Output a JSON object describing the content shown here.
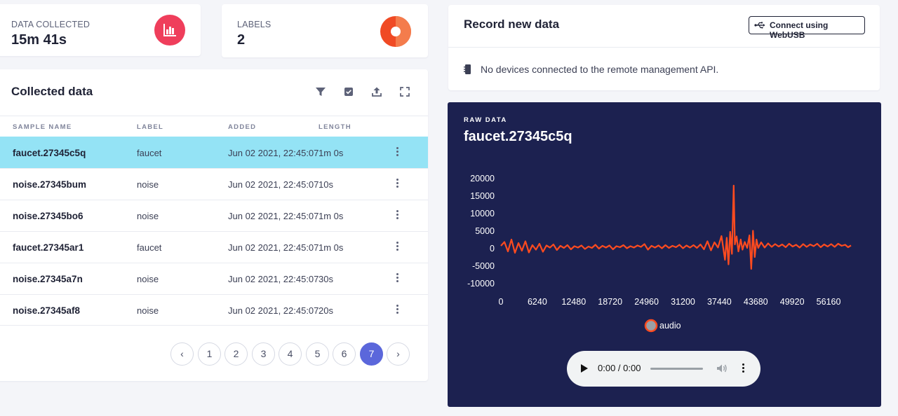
{
  "stats": {
    "data_collected": {
      "label": "DATA COLLECTED",
      "value": "15m 41s",
      "icon": "bar-chart-icon",
      "color": "#ef3e5b"
    },
    "labels": {
      "label": "LABELS",
      "value": "2",
      "icon": "pie-chart-icon",
      "colors": [
        "#f04a24",
        "#f7a06b"
      ]
    }
  },
  "collected": {
    "title": "Collected data",
    "tools": [
      "filter-icon",
      "select-icon",
      "upload-icon",
      "expand-icon"
    ],
    "columns": [
      "SAMPLE NAME",
      "LABEL",
      "ADDED",
      "LENGTH"
    ],
    "rows": [
      {
        "name": "faucet.27345c5q",
        "label": "faucet",
        "added": "Jun 02 2021, 22:45:07",
        "length": "1m 0s"
      },
      {
        "name": "noise.27345bum",
        "label": "noise",
        "added": "Jun 02 2021, 22:45:07",
        "length": "10s"
      },
      {
        "name": "noise.27345bo6",
        "label": "noise",
        "added": "Jun 02 2021, 22:45:07",
        "length": "1m 0s"
      },
      {
        "name": "faucet.27345ar1",
        "label": "faucet",
        "added": "Jun 02 2021, 22:45:07",
        "length": "1m 0s"
      },
      {
        "name": "noise.27345a7n",
        "label": "noise",
        "added": "Jun 02 2021, 22:45:07",
        "length": "30s"
      },
      {
        "name": "noise.27345af8",
        "label": "noise",
        "added": "Jun 02 2021, 22:45:07",
        "length": "20s"
      }
    ],
    "selected_row": 0,
    "pagination": {
      "prev": "‹",
      "next": "›",
      "pages": [
        "1",
        "2",
        "3",
        "4",
        "5",
        "6",
        "7"
      ],
      "current": "7"
    }
  },
  "record": {
    "title": "Record new data",
    "webusb_button": "Connect using WebUSB",
    "message": "No devices connected to the remote management API."
  },
  "raw": {
    "section_label": "RAW DATA",
    "sample_name": "faucet.27345c5q",
    "audio_player": {
      "time": "0:00 / 0:00"
    }
  },
  "chart_data": {
    "type": "line",
    "title": "",
    "xlabel": "",
    "ylabel": "",
    "x_ticks": [
      0,
      6240,
      12480,
      18720,
      24960,
      31200,
      37440,
      43680,
      49920,
      56160
    ],
    "y_ticks": [
      20000,
      15000,
      10000,
      5000,
      0,
      -5000,
      -10000
    ],
    "xlim": [
      0,
      60000
    ],
    "ylim": [
      -10000,
      20000
    ],
    "grid": false,
    "legend": "bottom",
    "series": [
      {
        "name": "audio",
        "color": "#ff4b1f",
        "points": [
          [
            0,
            800
          ],
          [
            600,
            1900
          ],
          [
            1200,
            -800
          ],
          [
            1800,
            2600
          ],
          [
            2400,
            -1200
          ],
          [
            3000,
            1600
          ],
          [
            3600,
            -600
          ],
          [
            4200,
            2100
          ],
          [
            4800,
            -1100
          ],
          [
            5400,
            1000
          ],
          [
            6000,
            -300
          ],
          [
            6600,
            1400
          ],
          [
            7200,
            -900
          ],
          [
            7800,
            900
          ],
          [
            8400,
            300
          ],
          [
            9000,
            1200
          ],
          [
            9600,
            -400
          ],
          [
            10200,
            800
          ],
          [
            10800,
            200
          ],
          [
            11400,
            1000
          ],
          [
            12000,
            -200
          ],
          [
            12600,
            700
          ],
          [
            13200,
            300
          ],
          [
            13800,
            900
          ],
          [
            14400,
            -100
          ],
          [
            15000,
            600
          ],
          [
            15600,
            200
          ],
          [
            16200,
            1100
          ],
          [
            16800,
            0
          ],
          [
            17400,
            800
          ],
          [
            18000,
            300
          ],
          [
            18600,
            900
          ],
          [
            19200,
            -200
          ],
          [
            19800,
            700
          ],
          [
            20400,
            400
          ],
          [
            21000,
            1000
          ],
          [
            21600,
            100
          ],
          [
            22200,
            700
          ],
          [
            22800,
            300
          ],
          [
            23400,
            900
          ],
          [
            24000,
            500
          ],
          [
            24600,
            1300
          ],
          [
            25200,
            -300
          ],
          [
            25800,
            800
          ],
          [
            26400,
            300
          ],
          [
            27000,
            900
          ],
          [
            27600,
            100
          ],
          [
            28200,
            1000
          ],
          [
            28800,
            200
          ],
          [
            29400,
            800
          ],
          [
            30000,
            400
          ],
          [
            30600,
            1100
          ],
          [
            31200,
            100
          ],
          [
            31800,
            900
          ],
          [
            32400,
            300
          ],
          [
            33000,
            1000
          ],
          [
            33600,
            200
          ],
          [
            34200,
            1200
          ],
          [
            34800,
            -200
          ],
          [
            35400,
            2100
          ],
          [
            36000,
            -500
          ],
          [
            36600,
            1800
          ],
          [
            37200,
            300
          ],
          [
            37800,
            3600
          ],
          [
            38400,
            -3200
          ],
          [
            38700,
            3100
          ],
          [
            39000,
            -4500
          ],
          [
            39300,
            4800
          ],
          [
            39600,
            -1500
          ],
          [
            39900,
            18000
          ],
          [
            40100,
            1200
          ],
          [
            40400,
            3500
          ],
          [
            40700,
            -800
          ],
          [
            41100,
            2600
          ],
          [
            41400,
            -300
          ],
          [
            41800,
            1900
          ],
          [
            42200,
            200
          ],
          [
            42600,
            3800
          ],
          [
            42900,
            -5800
          ],
          [
            43200,
            5100
          ],
          [
            43500,
            -2400
          ],
          [
            43800,
            2600
          ],
          [
            44100,
            200
          ],
          [
            44600,
            1800
          ],
          [
            45200,
            300
          ],
          [
            45800,
            1500
          ],
          [
            46400,
            500
          ],
          [
            47000,
            1300
          ],
          [
            47600,
            600
          ],
          [
            48200,
            1200
          ],
          [
            48800,
            400
          ],
          [
            49400,
            1400
          ],
          [
            50000,
            600
          ],
          [
            50600,
            1100
          ],
          [
            51200,
            300
          ],
          [
            51800,
            1300
          ],
          [
            52400,
            500
          ],
          [
            53000,
            1200
          ],
          [
            53600,
            700
          ],
          [
            54200,
            1400
          ],
          [
            54800,
            400
          ],
          [
            55400,
            1200
          ],
          [
            56000,
            600
          ],
          [
            56600,
            1300
          ],
          [
            57200,
            500
          ],
          [
            57800,
            1400
          ],
          [
            58400,
            800
          ],
          [
            59000,
            1100
          ],
          [
            59500,
            400
          ],
          [
            60000,
            900
          ]
        ]
      }
    ]
  }
}
